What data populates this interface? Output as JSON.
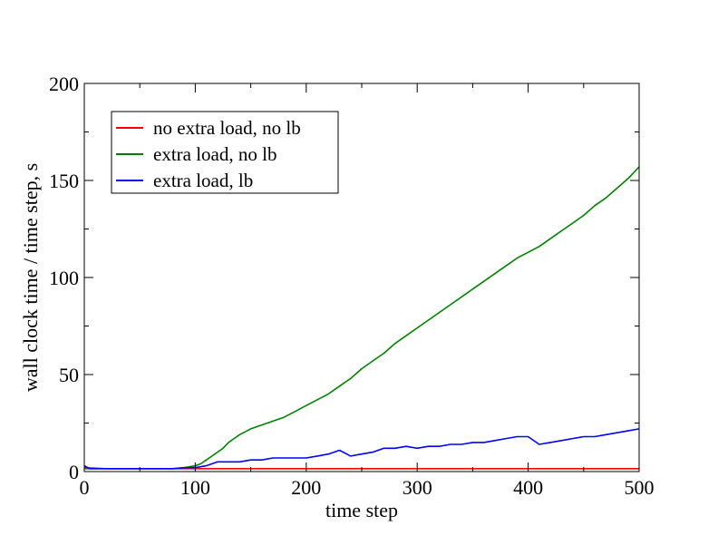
{
  "chart_data": {
    "type": "line",
    "title": "",
    "xlabel": "time step",
    "ylabel": "wall clock time / time step, s",
    "xlim": [
      0,
      500
    ],
    "ylim": [
      0,
      200
    ],
    "x_major_ticks": [
      0,
      100,
      200,
      300,
      400,
      500
    ],
    "x_tick_labels": [
      "0",
      "100",
      "200",
      "300",
      "400",
      "500"
    ],
    "y_major_ticks": [
      0,
      50,
      100,
      150,
      200
    ],
    "y_tick_labels": [
      "0",
      "50",
      "100",
      "150",
      "200"
    ],
    "x_minor_step": 50,
    "y_minor_step": 25,
    "grid": false,
    "legend_position": "top-left",
    "series": [
      {
        "name": "no extra load, no lb",
        "color": "#ff0000",
        "x": [
          0,
          100,
          200,
          300,
          400,
          500
        ],
        "y": [
          1.5,
          1.5,
          1.5,
          1.5,
          1.5,
          1.5
        ]
      },
      {
        "name": "extra load, no lb",
        "color": "#008000",
        "x": [
          0,
          20,
          40,
          60,
          80,
          90,
          100,
          105,
          110,
          115,
          120,
          125,
          130,
          135,
          140,
          150,
          160,
          170,
          180,
          190,
          200,
          210,
          220,
          230,
          240,
          250,
          260,
          270,
          280,
          290,
          300,
          310,
          320,
          330,
          340,
          350,
          360,
          370,
          380,
          390,
          400,
          410,
          420,
          430,
          440,
          450,
          460,
          470,
          480,
          490,
          500
        ],
        "y": [
          2,
          1.5,
          1.5,
          1.5,
          1.5,
          2,
          3,
          4,
          6,
          8,
          10,
          12,
          15,
          17,
          19,
          22,
          24,
          26,
          28,
          31,
          34,
          37,
          40,
          44,
          48,
          53,
          57,
          61,
          66,
          70,
          74,
          78,
          82,
          86,
          90,
          94,
          98,
          102,
          106,
          110,
          113,
          116,
          120,
          124,
          128,
          132,
          137,
          141,
          146,
          151,
          157
        ]
      },
      {
        "name": "extra load, lb",
        "color": "#0000ff",
        "x": [
          0,
          5,
          10,
          20,
          40,
          60,
          80,
          90,
          100,
          110,
          120,
          130,
          140,
          150,
          160,
          170,
          180,
          190,
          200,
          210,
          220,
          230,
          240,
          250,
          260,
          270,
          280,
          290,
          300,
          310,
          320,
          330,
          340,
          350,
          360,
          370,
          380,
          390,
          400,
          410,
          420,
          430,
          440,
          450,
          460,
          470,
          480,
          490,
          500
        ],
        "y": [
          3,
          1.5,
          1.5,
          1.5,
          1.5,
          1.5,
          1.5,
          2,
          2,
          3,
          5,
          5,
          5,
          6,
          6,
          7,
          7,
          7,
          7,
          8,
          9,
          11,
          8,
          9,
          10,
          12,
          12,
          13,
          12,
          13,
          13,
          14,
          14,
          15,
          15,
          16,
          17,
          18,
          18,
          14,
          15,
          16,
          17,
          18,
          18,
          19,
          20,
          21,
          22
        ]
      }
    ]
  }
}
